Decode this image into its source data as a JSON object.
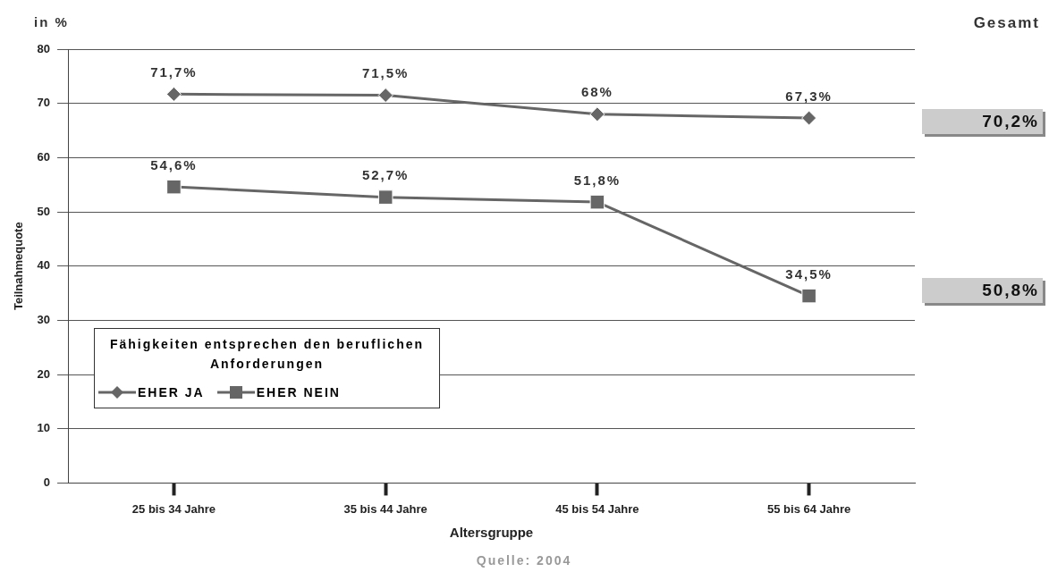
{
  "chart_data": {
    "type": "line",
    "ylabel": "Teilnahmequote",
    "xlabel": "Altersgruppe",
    "legend_title": "Fähigkeiten entsprechen den beruflichen Anforderungen",
    "categories": [
      "25 bis 34 Jahre",
      "35 bis 44 Jahre",
      "45 bis 54 Jahre",
      "55 bis 64 Jahre"
    ],
    "series": [
      {
        "name": "EHER JA",
        "color": "#666666",
        "marker": "diamond",
        "values": [
          71.7,
          71.5,
          68,
          67.3
        ],
        "value_labels": [
          "71,7%",
          "71,5%",
          "68%",
          "67,3%"
        ]
      },
      {
        "name": "EHER NEIN",
        "color": "#666666",
        "marker": "square",
        "values": [
          54.6,
          52.7,
          51.8,
          34.5
        ],
        "value_labels": [
          "54,6%",
          "52,7%",
          "51,8%",
          "34,5%"
        ]
      }
    ],
    "ylim": [
      0,
      80
    ],
    "yticks": [
      0,
      10,
      20,
      30,
      40,
      50,
      60,
      70,
      80
    ],
    "grid": "y",
    "legend": "bottom left",
    "line_style": "solid",
    "annotations": [
      "in %",
      "Gesamt",
      "Quelle: 2004",
      "70,2%",
      "50,8%"
    ]
  }
}
